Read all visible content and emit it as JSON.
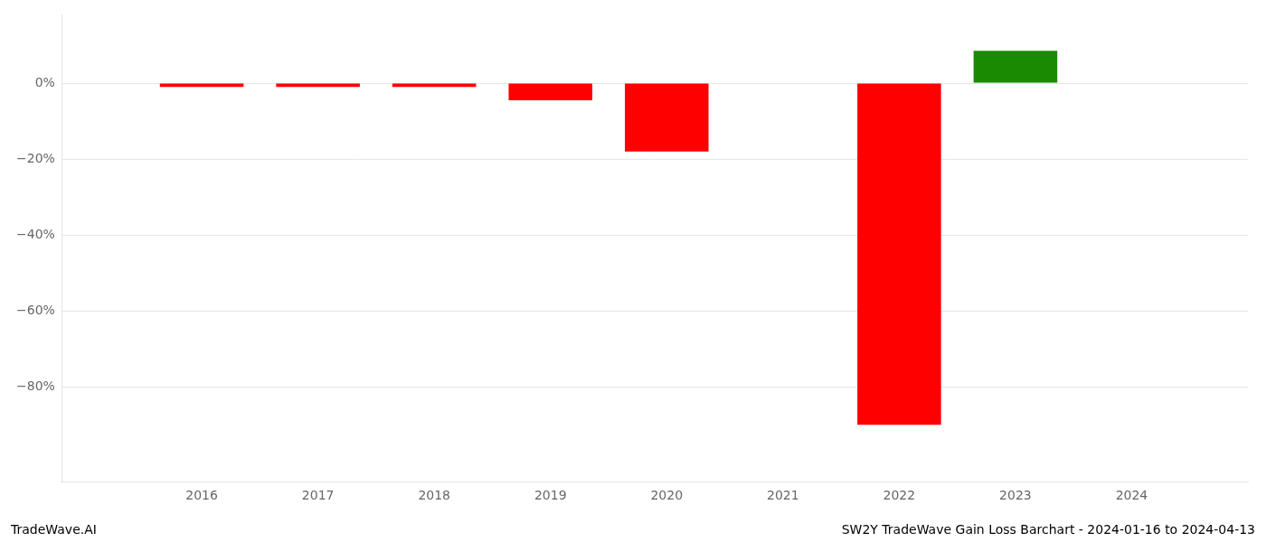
{
  "chart_data": {
    "type": "bar",
    "x": [
      2016,
      2017,
      2018,
      2019,
      2020,
      2021,
      2022,
      2023,
      2024
    ],
    "values": [
      -1.0,
      -1.0,
      -1.0,
      -4.5,
      -18.0,
      0.0,
      -90.0,
      8.5,
      0.0
    ],
    "colors": [
      "#ff0000",
      "#ff0000",
      "#ff0000",
      "#ff0000",
      "#ff0000",
      "#ff0000",
      "#ff0000",
      "#1a8a00",
      "#ff0000"
    ],
    "xlim": [
      2014.8,
      2025.0
    ],
    "xticks": [
      2016,
      2017,
      2018,
      2019,
      2020,
      2021,
      2022,
      2023,
      2024
    ],
    "ylim": [
      -105,
      18
    ],
    "yticks": [
      {
        "value": 0,
        "label": "0%"
      },
      {
        "value": -20,
        "label": "−20%"
      },
      {
        "value": -40,
        "label": "−40%"
      },
      {
        "value": -60,
        "label": "−60%"
      },
      {
        "value": -80,
        "label": "−80%"
      }
    ],
    "grid": "y",
    "annotations": [
      "TradeWave.AI",
      "SW2Y TradeWave Gain Loss Barchart - 2024-01-16 to 2024-04-13"
    ]
  }
}
